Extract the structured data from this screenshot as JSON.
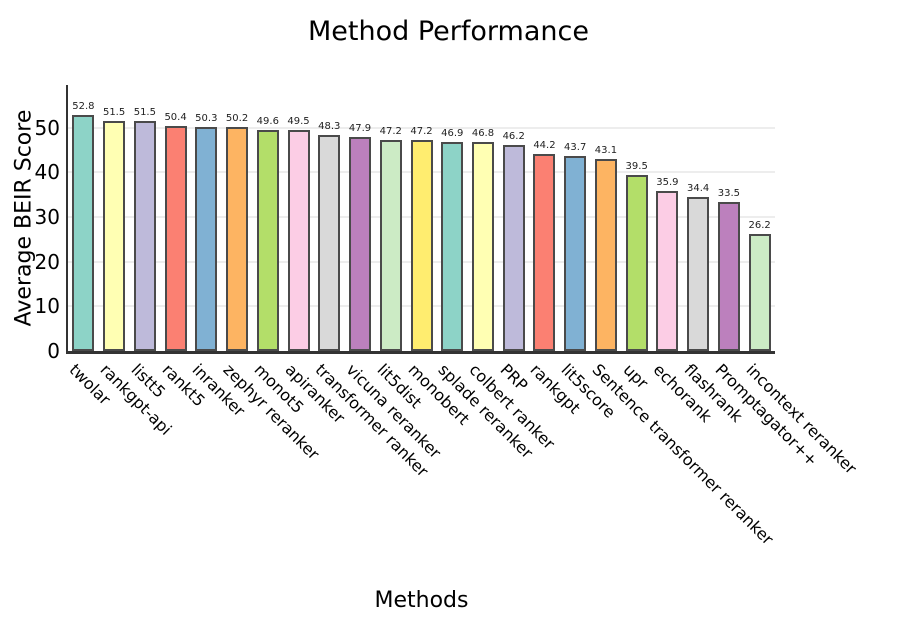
{
  "chart_data": {
    "type": "bar",
    "title": "Method Performance",
    "xlabel": "Methods",
    "ylabel": "Average BEIR Score",
    "categories": [
      "twolar",
      "rankgpt-api",
      "listt5",
      "rankt5",
      "inranker",
      "zephyr reranker",
      "monot5",
      "apiranker",
      "transformer ranker",
      "vicuna reranker",
      "lit5dist",
      "monobert",
      "splade reranker",
      "colbert ranker",
      "PRP",
      "rankgpt",
      "lit5score",
      "Sentence transformer reranker",
      "upr",
      "echorank",
      "flashrank",
      "Promptagator++",
      "incontext reranker"
    ],
    "values": [
      52.8,
      51.5,
      51.5,
      50.4,
      50.3,
      50.2,
      49.6,
      49.5,
      48.3,
      47.9,
      47.2,
      47.2,
      46.9,
      46.8,
      46.2,
      44.2,
      43.7,
      43.1,
      39.5,
      35.9,
      34.4,
      33.5,
      26.2
    ],
    "yticks": [
      0,
      10,
      20,
      30,
      40,
      50
    ],
    "ylim": [
      0,
      59.6
    ],
    "grid": "y",
    "legend": "none",
    "bar_colors": [
      "#8dd3c7",
      "#ffffb3",
      "#bebada",
      "#fb8072",
      "#80b1d3",
      "#fdb462",
      "#b3de69",
      "#fccde5",
      "#d9d9d9",
      "#bc80bd",
      "#ccebc5",
      "#ffed6f"
    ],
    "bar_edge_color": "#4a4a4a",
    "grid_color": "#ededed",
    "axis_color": "#333333",
    "text_color": "#000000"
  }
}
